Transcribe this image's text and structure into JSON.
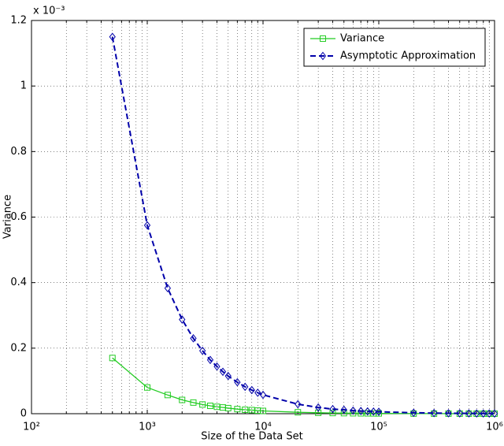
{
  "chart_data": {
    "type": "line",
    "xlabel": "Size of the Data Set",
    "ylabel": "Variance",
    "y_multiplier": "x 10⁻³",
    "xscale": "log",
    "grid": true,
    "legend": "top-right",
    "x": [
      500,
      1000,
      1500,
      2000,
      2500,
      3000,
      3500,
      4000,
      4500,
      5000,
      6000,
      7000,
      8000,
      9000,
      10000,
      20000,
      30000,
      40000,
      50000,
      60000,
      70000,
      80000,
      90000,
      100000,
      200000,
      300000,
      400000,
      500000,
      600000,
      700000,
      800000,
      900000,
      1000000
    ],
    "series": [
      {
        "name": "Variance",
        "color": "#22cc22",
        "marker": "square",
        "dash": false,
        "values": [
          0.17,
          0.08,
          0.057,
          0.042,
          0.034,
          0.028,
          0.024,
          0.021,
          0.019,
          0.017,
          0.014,
          0.012,
          0.011,
          0.0095,
          0.0085,
          0.0043,
          0.0028,
          0.0021,
          0.0017,
          0.0014,
          0.0012,
          0.0011,
          0.0009,
          0.0009,
          0.0004,
          0.0003,
          0.0002,
          0.0002,
          0.0001,
          0.0001,
          0.0001,
          0.0001,
          0.0001
        ]
      },
      {
        "name": "Asymptotic Approximation",
        "color": "#0000aa",
        "marker": "diamond",
        "dash": true,
        "values": [
          1.15,
          0.575,
          0.383,
          0.2875,
          0.23,
          0.192,
          0.164,
          0.144,
          0.128,
          0.115,
          0.096,
          0.082,
          0.072,
          0.064,
          0.0575,
          0.029,
          0.019,
          0.014,
          0.012,
          0.0096,
          0.0082,
          0.0072,
          0.0064,
          0.0058,
          0.0029,
          0.0019,
          0.0014,
          0.0012,
          0.001,
          0.0008,
          0.0007,
          0.0006,
          0.0006
        ]
      }
    ],
    "xlim": [
      100,
      1000000
    ],
    "xticks": [
      {
        "value": 100,
        "label": "10²"
      },
      {
        "value": 1000,
        "label": "10³"
      },
      {
        "value": 10000,
        "label": "10⁴"
      },
      {
        "value": 100000,
        "label": "10⁵"
      },
      {
        "value": 1000000,
        "label": "10⁶"
      }
    ],
    "ylim": [
      0,
      1.2
    ],
    "yticks": [
      0,
      0.2,
      0.4,
      0.6,
      0.8,
      1,
      1.2
    ]
  }
}
